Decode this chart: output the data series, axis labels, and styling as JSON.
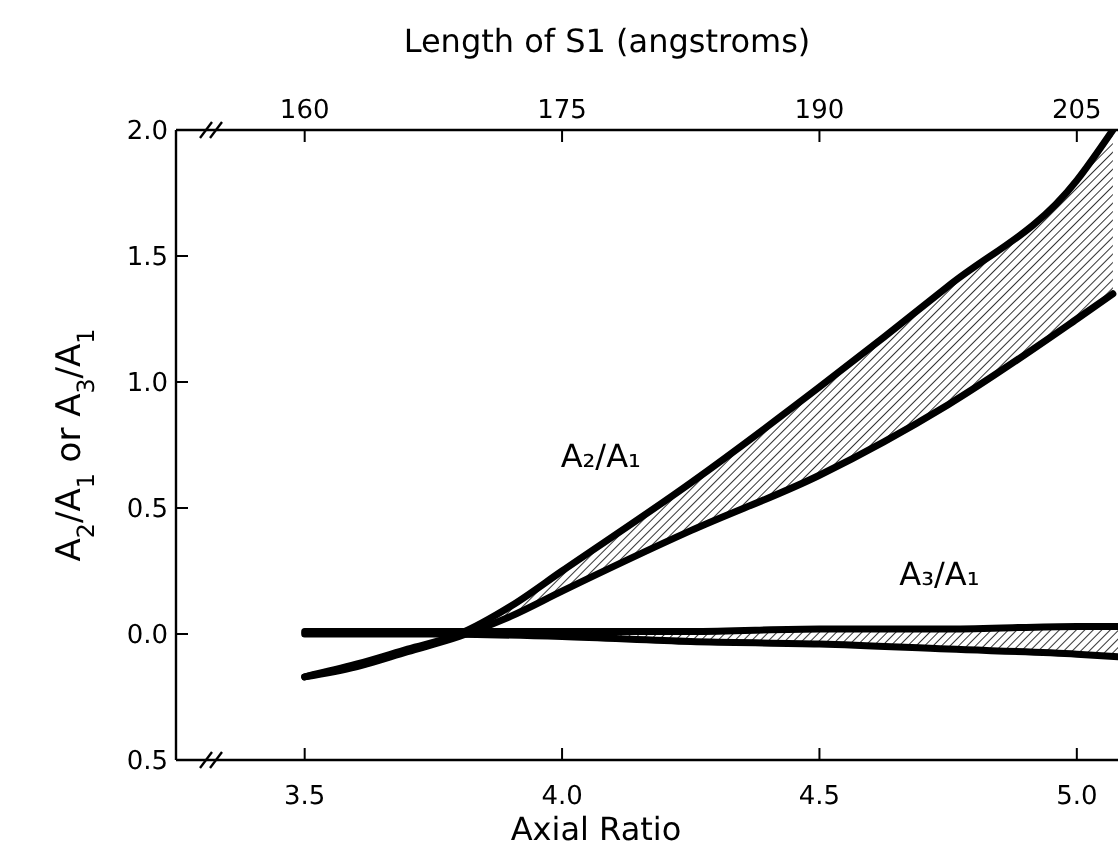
{
  "chart_data": {
    "type": "line",
    "xlabel": "Axial Ratio",
    "ylabel": "A$_{2}$/A$_{1}$ or A$_{3}$/A$_{1}$",
    "x2label": "Length of S1 (angstroms)",
    "xlim": [
      3.25,
      5.08
    ],
    "xticks": [
      3.5,
      {
        "value": 4.0,
        "label": "4.0"
      },
      4.5,
      {
        "value": 5.0,
        "label": "5.0"
      }
    ],
    "x2lim": [
      152.5,
      207.4
    ],
    "x2ticks": [
      160,
      175,
      190,
      205
    ],
    "ylim": [
      -0.5,
      2.0
    ],
    "yticks": [
      {
        "value": -0.5,
        "label": "0.5"
      },
      {
        "value": 0.0,
        "label": "0.0"
      },
      0.5,
      {
        "value": 1.0,
        "label": "1.0"
      },
      1.5,
      {
        "value": 2.0,
        "label": "2.0"
      }
    ],
    "grid": false,
    "legend": false,
    "marker": "none",
    "line_style": "solid",
    "series": [
      {
        "name": "A₂/A₁",
        "color": "#000000",
        "x": [
          3.5,
          3.6,
          3.7,
          3.8,
          3.9,
          4.0,
          4.25,
          4.5,
          4.75,
          5.0,
          5.07
        ],
        "values": [
          -0.17,
          -0.12,
          -0.06,
          0.0,
          0.11,
          0.25,
          0.6,
          0.98,
          1.38,
          1.8,
          2.0
        ],
        "lower": [
          -0.17,
          -0.13,
          -0.07,
          -0.01,
          0.07,
          0.17,
          0.41,
          0.63,
          0.91,
          1.25,
          1.35
        ],
        "upper": [
          -0.17,
          -0.12,
          -0.06,
          0.0,
          0.11,
          0.25,
          0.6,
          0.98,
          1.38,
          1.8,
          2.0
        ]
      },
      {
        "color": "#000000",
        "x": [
          3.5,
          3.6,
          3.7,
          3.8,
          3.9,
          4.0,
          4.25,
          4.5,
          4.75,
          5.0,
          5.07
        ],
        "values": [
          -0.17,
          -0.13,
          -0.07,
          -0.01,
          0.07,
          0.17,
          0.41,
          0.63,
          0.91,
          1.25,
          1.35
        ]
      },
      {
        "name": "A₃/A₁",
        "color": "#000000",
        "x": [
          3.5,
          3.75,
          4.0,
          4.25,
          4.5,
          4.75,
          5.0,
          5.08
        ],
        "values": [
          0.01,
          0.01,
          0.01,
          0.01,
          0.02,
          0.02,
          0.03,
          0.03
        ],
        "lower": [
          0.0,
          0.0,
          -0.01,
          -0.03,
          -0.04,
          -0.06,
          -0.08,
          -0.09
        ],
        "upper": [
          0.01,
          0.01,
          0.01,
          0.01,
          0.02,
          0.02,
          0.03,
          0.03
        ]
      },
      {
        "color": "#000000",
        "x": [
          3.5,
          3.75,
          4.0,
          4.25,
          4.5,
          4.75,
          5.0,
          5.08
        ],
        "values": [
          0.0,
          0.0,
          -0.01,
          -0.03,
          -0.04,
          -0.06,
          -0.08,
          -0.09
        ]
      }
    ]
  }
}
